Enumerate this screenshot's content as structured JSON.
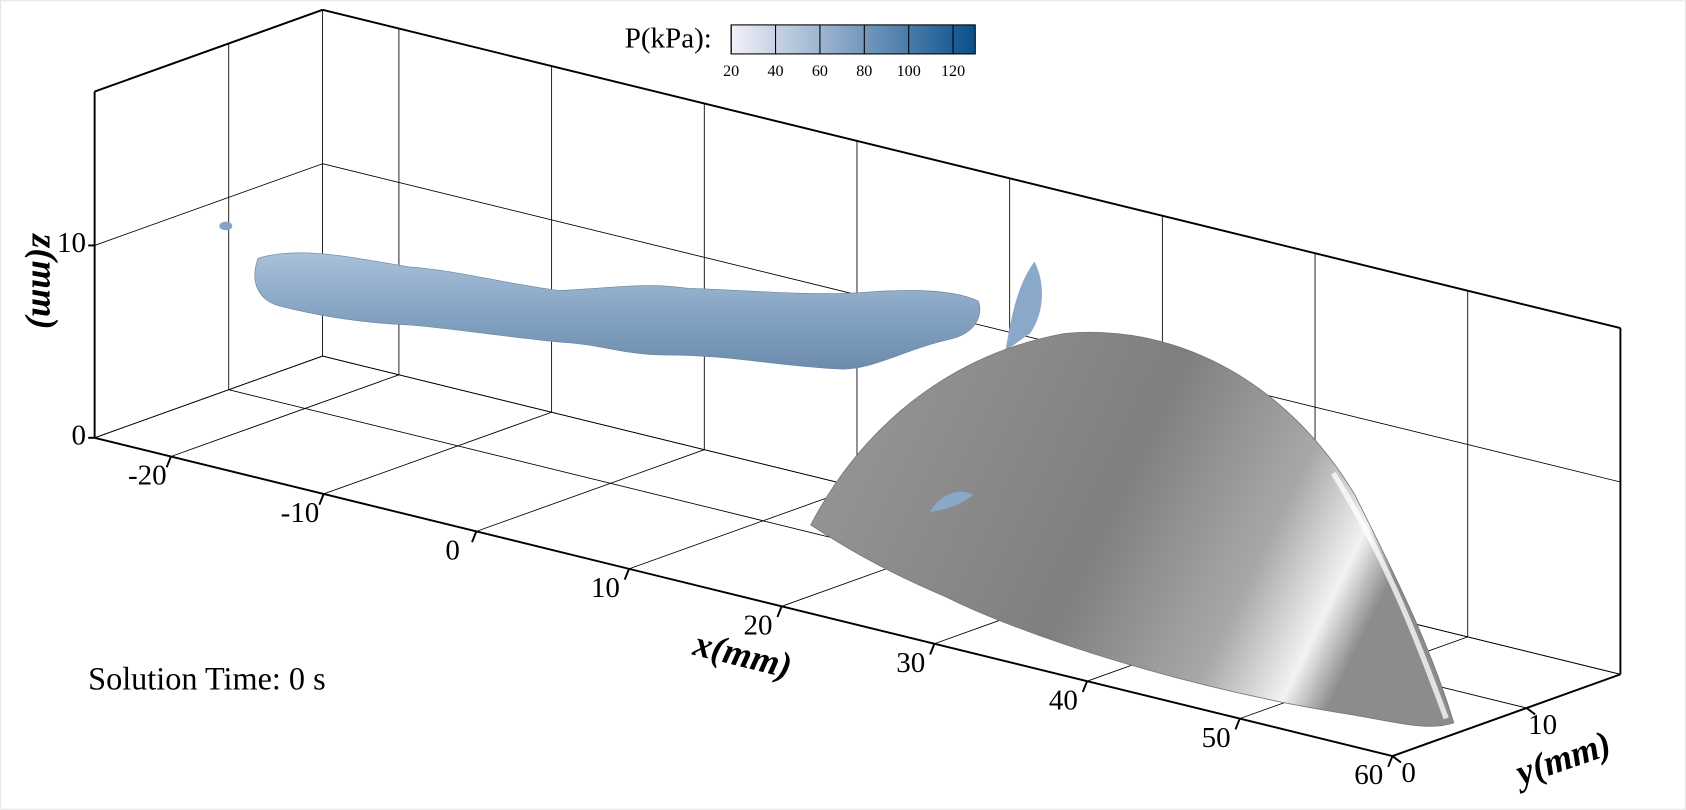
{
  "chart_data": {
    "type": "surface3d",
    "xlabel": "x(mm)",
    "ylabel": "y(mm)",
    "zlabel": "z(mm)",
    "xlim": [
      -25,
      60
    ],
    "xticks": [
      -20,
      -10,
      0,
      10,
      20,
      30,
      40,
      50,
      60
    ],
    "ylim": [
      0,
      17
    ],
    "yticks": [
      0,
      10
    ],
    "zlim": [
      0,
      18
    ],
    "zticks": [
      0,
      10
    ],
    "grid": true,
    "colorbar": {
      "label": "P(kPa):",
      "lim": [
        20,
        130
      ],
      "ticks": [
        20,
        40,
        60,
        80,
        100,
        120
      ],
      "colors": [
        "#f2f0f8",
        "#0a4f8a"
      ]
    },
    "annotation": "Solution Time: 0 s"
  }
}
